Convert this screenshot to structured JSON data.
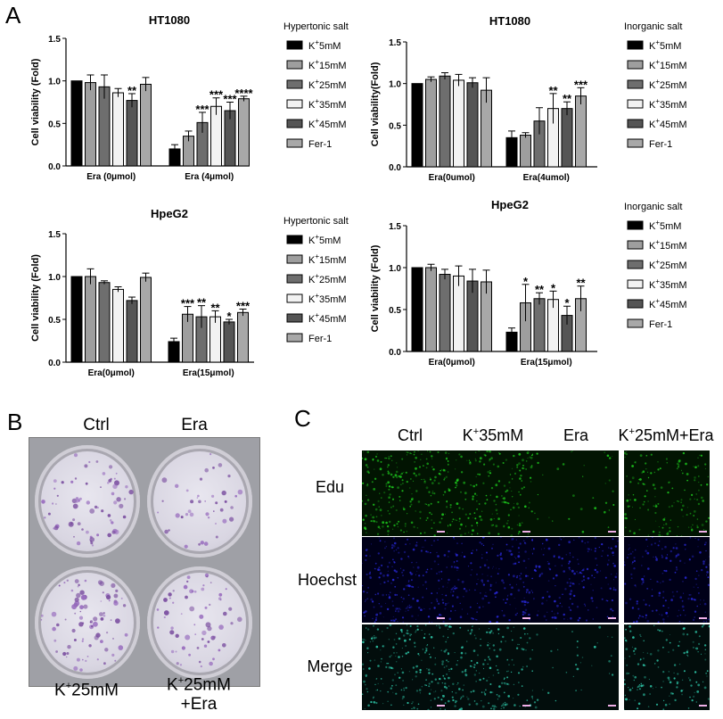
{
  "panel_labels": {
    "a": "A",
    "b": "B",
    "c": "C"
  },
  "chart_data": [
    {
      "type": "bar",
      "title": "HT1080",
      "ylabel": "Cell viability (Fold)",
      "ylim": [
        0,
        1.5
      ],
      "yticks": [
        "0.0",
        "0.5",
        "1.0",
        "1.5"
      ],
      "categories": [
        "Era (0μmol)",
        "Era (4μmol)"
      ],
      "legend_title": "Hypertonic salt",
      "series": [
        {
          "name": "K+5mM",
          "color": "#000000",
          "values": [
            1.0,
            0.2
          ],
          "errors": [
            0.0,
            0.05
          ]
        },
        {
          "name": "K+15mM",
          "color": "#9e9e9e",
          "values": [
            0.98,
            0.35
          ],
          "errors": [
            0.09,
            0.06
          ]
        },
        {
          "name": "K+25mM",
          "color": "#6e6e6e",
          "values": [
            0.93,
            0.51
          ],
          "errors": [
            0.14,
            0.12
          ]
        },
        {
          "name": "K+35mM",
          "color": "#f2f2f2",
          "values": [
            0.86,
            0.7
          ],
          "errors": [
            0.05,
            0.1
          ]
        },
        {
          "name": "K+45mM",
          "color": "#555555",
          "values": [
            0.77,
            0.65
          ],
          "errors": [
            0.08,
            0.1
          ]
        },
        {
          "name": "Fer-1",
          "color": "#a8a8a8",
          "values": [
            0.96,
            0.79
          ],
          "errors": [
            0.08,
            0.03
          ]
        }
      ],
      "significance": [
        [
          "",
          "",
          "",
          "",
          "**",
          ""
        ],
        [
          "",
          "",
          "***",
          "***",
          "***",
          "****"
        ]
      ]
    },
    {
      "type": "bar",
      "title": "HT1080",
      "ylabel": "Cell viability(Fold)",
      "ylim": [
        0,
        1.5
      ],
      "yticks": [
        "0.0",
        "0.5",
        "1.0",
        "1.5"
      ],
      "categories": [
        "Era(0umol)",
        "Era(4umol)"
      ],
      "legend_title": "Inorganic salt",
      "series": [
        {
          "name": "K+5mM",
          "color": "#000000",
          "values": [
            1.0,
            0.35
          ],
          "errors": [
            0.0,
            0.08
          ]
        },
        {
          "name": "K+15mM",
          "color": "#9e9e9e",
          "values": [
            1.05,
            0.38
          ],
          "errors": [
            0.03,
            0.03
          ]
        },
        {
          "name": "K+25mM",
          "color": "#6e6e6e",
          "values": [
            1.09,
            0.55
          ],
          "errors": [
            0.04,
            0.16
          ]
        },
        {
          "name": "K+35mM",
          "color": "#f2f2f2",
          "values": [
            1.04,
            0.7
          ],
          "errors": [
            0.07,
            0.18
          ]
        },
        {
          "name": "K+45mM",
          "color": "#555555",
          "values": [
            1.01,
            0.7
          ],
          "errors": [
            0.06,
            0.08
          ]
        },
        {
          "name": "Fer-1",
          "color": "#a8a8a8",
          "values": [
            0.92,
            0.85
          ],
          "errors": [
            0.15,
            0.1
          ]
        }
      ],
      "significance": [
        [
          "",
          "",
          "",
          "",
          "",
          ""
        ],
        [
          "",
          "",
          "",
          "**",
          "**",
          "***"
        ]
      ]
    },
    {
      "type": "bar",
      "title": "HpeG2",
      "ylabel": "Cell viability (Fold)",
      "ylim": [
        0,
        1.5
      ],
      "yticks": [
        "0.0",
        "0.5",
        "1.0",
        "1.5"
      ],
      "categories": [
        "Era(0μmol)",
        "Era(15μmol)"
      ],
      "legend_title": "Hypertonic salt",
      "series": [
        {
          "name": "K+5mM",
          "color": "#000000",
          "values": [
            1.0,
            0.24
          ],
          "errors": [
            0.0,
            0.04
          ]
        },
        {
          "name": "K+15mM",
          "color": "#9e9e9e",
          "values": [
            1.0,
            0.56
          ],
          "errors": [
            0.09,
            0.09
          ]
        },
        {
          "name": "K+25mM",
          "color": "#6e6e6e",
          "values": [
            0.93,
            0.53
          ],
          "errors": [
            0.02,
            0.13
          ]
        },
        {
          "name": "K+35mM",
          "color": "#f2f2f2",
          "values": [
            0.85,
            0.53
          ],
          "errors": [
            0.03,
            0.07
          ]
        },
        {
          "name": "K+45mM",
          "color": "#555555",
          "values": [
            0.72,
            0.47
          ],
          "errors": [
            0.04,
            0.03
          ]
        },
        {
          "name": "Fer-1",
          "color": "#a8a8a8",
          "values": [
            0.99,
            0.58
          ],
          "errors": [
            0.05,
            0.04
          ]
        }
      ],
      "significance": [
        [
          "",
          "",
          "",
          "",
          "",
          ""
        ],
        [
          "",
          "***",
          "**",
          "**",
          "*",
          "***"
        ]
      ]
    },
    {
      "type": "bar",
      "title": "HpeG2",
      "ylabel": "Cell viability (Fold)",
      "ylim": [
        0,
        1.5
      ],
      "yticks": [
        "0.0",
        "0.5",
        "1.0",
        "1.5"
      ],
      "categories": [
        "Era(0μmol)",
        "Era(15μmol)"
      ],
      "legend_title": "Inorganic salt",
      "series": [
        {
          "name": "K+5mM",
          "color": "#000000",
          "values": [
            1.0,
            0.23
          ],
          "errors": [
            0.0,
            0.05
          ]
        },
        {
          "name": "K+15mM",
          "color": "#9e9e9e",
          "values": [
            1.0,
            0.58
          ],
          "errors": [
            0.04,
            0.22
          ]
        },
        {
          "name": "K+25mM",
          "color": "#6e6e6e",
          "values": [
            0.92,
            0.63
          ],
          "errors": [
            0.06,
            0.07
          ]
        },
        {
          "name": "K+35mM",
          "color": "#f2f2f2",
          "values": [
            0.9,
            0.62
          ],
          "errors": [
            0.12,
            0.1
          ]
        },
        {
          "name": "K+45mM",
          "color": "#555555",
          "values": [
            0.84,
            0.43
          ],
          "errors": [
            0.14,
            0.11
          ]
        },
        {
          "name": "Fer-1",
          "color": "#a8a8a8",
          "values": [
            0.83,
            0.63
          ],
          "errors": [
            0.14,
            0.15
          ]
        }
      ],
      "significance": [
        [
          "",
          "",
          "",
          "",
          "",
          ""
        ],
        [
          "",
          "*",
          "**",
          "*",
          "*",
          "**"
        ]
      ]
    }
  ],
  "panel_b": {
    "top_labels": [
      "Ctrl",
      "Era"
    ],
    "bottom_labels": [
      "K+25mM",
      "K+25mM\n+Era"
    ]
  },
  "panel_c": {
    "columns": [
      "Ctrl",
      "K+35mM",
      "Era",
      "K+25mM+Era"
    ],
    "rows": [
      "Edu",
      "Hoechst",
      "Merge"
    ]
  }
}
